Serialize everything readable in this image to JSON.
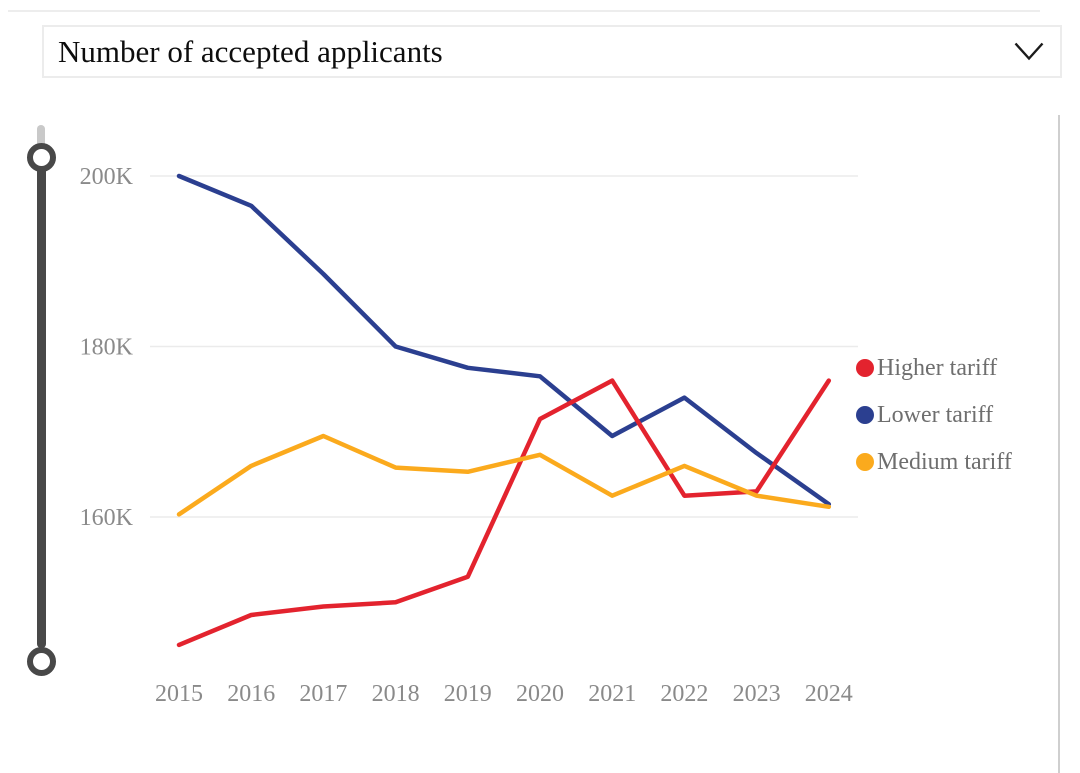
{
  "dropdown": {
    "value": "Number of accepted applicants",
    "chevron_icon": "chevron-down-icon"
  },
  "colors": {
    "grid": "#ebebeb",
    "axis_text": "#8a8a8a",
    "legend_text": "#6e6e6e",
    "slider": "#484848",
    "divider": "#cfcfcf",
    "dropdown_border": "#ececec"
  },
  "chart_data": {
    "type": "line",
    "title": "Number of accepted applicants",
    "x_labels": [
      "2015",
      "2016",
      "2017",
      "2018",
      "2019",
      "2020",
      "2021",
      "2022",
      "2023",
      "2024"
    ],
    "y_ticks": [
      "200K",
      "180K",
      "160K"
    ],
    "y_tick_values": [
      200,
      180,
      160
    ],
    "y_unit": "K",
    "ylim": [
      140,
      204
    ],
    "grid": true,
    "legend_position": "right",
    "z_order": [
      "Lower tariff",
      "Higher tariff",
      "Medium tariff"
    ],
    "series": [
      {
        "name": "Higher tariff",
        "color": "#e3232e",
        "values": [
          145,
          148.5,
          149.5,
          150,
          153,
          171.5,
          176,
          162.5,
          163,
          176
        ]
      },
      {
        "name": "Lower tariff",
        "color": "#2b3f90",
        "values": [
          200,
          196.5,
          188.5,
          180,
          177.5,
          176.5,
          169.5,
          174,
          167.5,
          161.5
        ]
      },
      {
        "name": "Medium tariff",
        "color": "#fbaa1d",
        "values": [
          160.3,
          166,
          169.5,
          165.8,
          165.3,
          167.3,
          162.5,
          166,
          162.5,
          161.2
        ]
      }
    ]
  }
}
